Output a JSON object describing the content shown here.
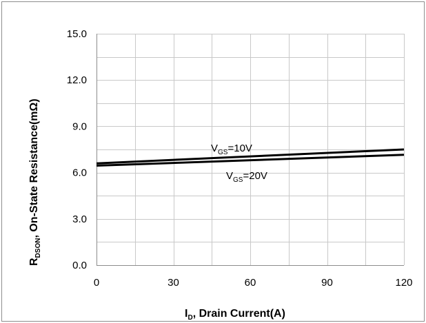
{
  "chart_data": {
    "type": "line",
    "xlabel": {
      "main": "I",
      "sub": "D",
      "rest": ", Drain Current(A)"
    },
    "ylabel": {
      "main": "R",
      "sub": "DSON",
      "rest": ", On-State Resistance(mΩ)"
    },
    "xlim": [
      0,
      120
    ],
    "ylim": [
      0.0,
      15.0
    ],
    "x_ticks": [
      "0",
      "30",
      "60",
      "90",
      "120"
    ],
    "y_ticks": [
      "0.0",
      "3.0",
      "6.0",
      "9.0",
      "12.0",
      "15.0"
    ],
    "grid": true,
    "legend": "none",
    "series": [
      {
        "name": {
          "main": "V",
          "sub": "GS",
          "rest": "=10V"
        },
        "x": [
          0,
          120
        ],
        "y": [
          6.6,
          7.5
        ],
        "color": "#000000"
      },
      {
        "name": {
          "main": "V",
          "sub": "GS",
          "rest": "=20V"
        },
        "x": [
          0,
          120
        ],
        "y": [
          6.45,
          7.15
        ],
        "color": "#000000"
      }
    ]
  }
}
